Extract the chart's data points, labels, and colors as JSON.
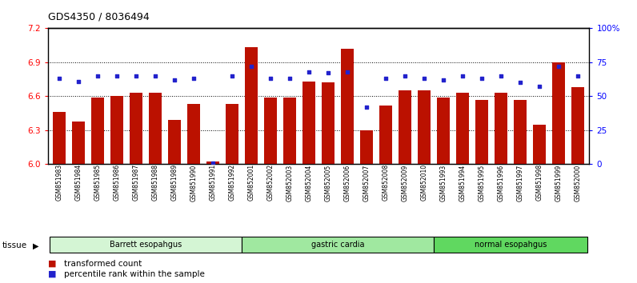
{
  "title": "GDS4350 / 8036494",
  "samples": [
    "GSM851983",
    "GSM851984",
    "GSM851985",
    "GSM851986",
    "GSM851987",
    "GSM851988",
    "GSM851989",
    "GSM851990",
    "GSM851991",
    "GSM851992",
    "GSM852001",
    "GSM852002",
    "GSM852003",
    "GSM852004",
    "GSM852005",
    "GSM852006",
    "GSM852007",
    "GSM852008",
    "GSM852009",
    "GSM852010",
    "GSM851993",
    "GSM851994",
    "GSM851995",
    "GSM851996",
    "GSM851997",
    "GSM851998",
    "GSM851999",
    "GSM852000"
  ],
  "bar_values": [
    6.46,
    6.38,
    6.59,
    6.6,
    6.63,
    6.63,
    6.39,
    6.53,
    6.02,
    6.53,
    7.03,
    6.59,
    6.59,
    6.73,
    6.72,
    7.02,
    6.3,
    6.52,
    6.65,
    6.65,
    6.59,
    6.63,
    6.57,
    6.63,
    6.57,
    6.35,
    6.9,
    6.68
  ],
  "percentile_values": [
    63,
    61,
    65,
    65,
    65,
    65,
    62,
    63,
    1,
    65,
    72,
    63,
    63,
    68,
    67,
    68,
    42,
    63,
    65,
    63,
    62,
    65,
    63,
    65,
    60,
    57,
    72,
    65
  ],
  "groups": [
    {
      "label": "Barrett esopahgus",
      "start": 0,
      "end": 10,
      "color": "#d4f5d4"
    },
    {
      "label": "gastric cardia",
      "start": 10,
      "end": 20,
      "color": "#a0e8a0"
    },
    {
      "label": "normal esopahgus",
      "start": 20,
      "end": 28,
      "color": "#60d860"
    }
  ],
  "bar_color": "#bb1100",
  "dot_color": "#2222cc",
  "ylim_left": [
    6.0,
    7.2
  ],
  "ylim_right": [
    0,
    100
  ],
  "yticks_left": [
    6.0,
    6.3,
    6.6,
    6.9,
    7.2
  ],
  "yticks_right": [
    0,
    25,
    50,
    75,
    100
  ],
  "ytick_labels_right": [
    "0",
    "25",
    "50",
    "75",
    "100%"
  ],
  "hlines": [
    6.3,
    6.6,
    6.9
  ],
  "legend_bar_label": "transformed count",
  "legend_dot_label": "percentile rank within the sample",
  "bg_color": "#ffffff",
  "tissue_label": "tissue"
}
